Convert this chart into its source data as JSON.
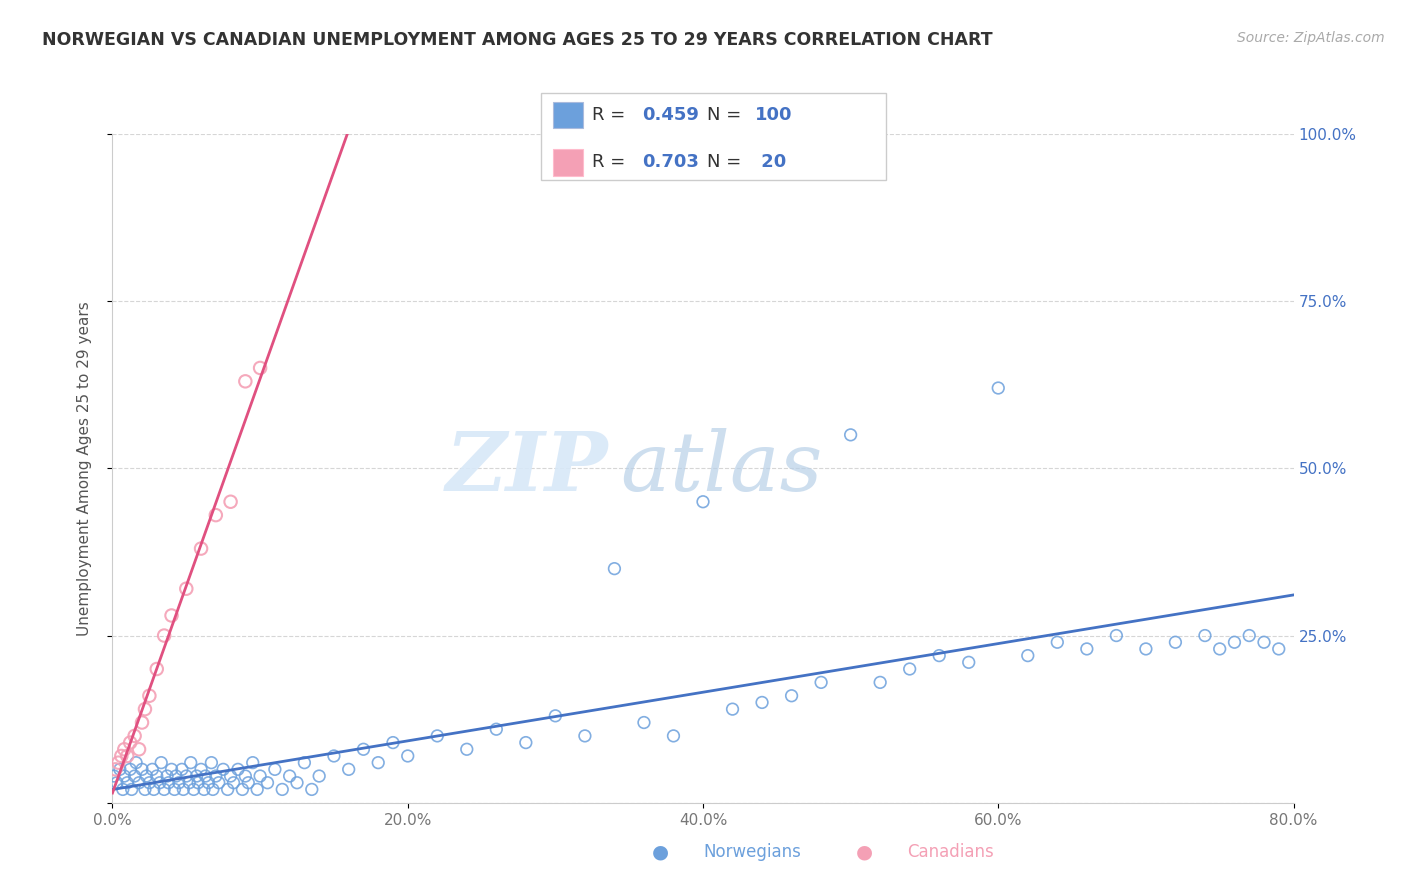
{
  "title": "NORWEGIAN VS CANADIAN UNEMPLOYMENT AMONG AGES 25 TO 29 YEARS CORRELATION CHART",
  "source_text": "Source: ZipAtlas.com",
  "ylabel": "Unemployment Among Ages 25 to 29 years",
  "xlim": [
    0.0,
    0.8
  ],
  "ylim": [
    0.0,
    1.0
  ],
  "xticks": [
    0.0,
    0.2,
    0.4,
    0.6,
    0.8
  ],
  "xticklabels": [
    "0.0%",
    "20.0%",
    "40.0%",
    "60.0%",
    "80.0%"
  ],
  "yticks": [
    0.0,
    0.25,
    0.5,
    0.75,
    1.0
  ],
  "yticklabels": [
    "",
    "25.0%",
    "50.0%",
    "75.0%",
    "100.0%"
  ],
  "norwegian_color": "#6ca0dc",
  "canadian_color": "#f4a0b5",
  "regression_norwegian_color": "#4472c4",
  "regression_canadian_color": "#e05080",
  "norwegian_R": 0.459,
  "norwegian_N": 100,
  "canadian_R": 0.703,
  "canadian_N": 20,
  "watermark_zip": "ZIP",
  "watermark_atlas": "atlas",
  "background_color": "#ffffff",
  "grid_color": "#cccccc",
  "norwegian_x": [
    0.001,
    0.003,
    0.005,
    0.007,
    0.008,
    0.01,
    0.012,
    0.013,
    0.015,
    0.016,
    0.018,
    0.02,
    0.022,
    0.023,
    0.025,
    0.027,
    0.028,
    0.03,
    0.032,
    0.033,
    0.035,
    0.037,
    0.038,
    0.04,
    0.042,
    0.043,
    0.045,
    0.047,
    0.048,
    0.05,
    0.052,
    0.053,
    0.055,
    0.057,
    0.058,
    0.06,
    0.062,
    0.063,
    0.065,
    0.067,
    0.068,
    0.07,
    0.072,
    0.075,
    0.078,
    0.08,
    0.082,
    0.085,
    0.088,
    0.09,
    0.092,
    0.095,
    0.098,
    0.1,
    0.105,
    0.11,
    0.115,
    0.12,
    0.125,
    0.13,
    0.135,
    0.14,
    0.15,
    0.16,
    0.17,
    0.18,
    0.19,
    0.2,
    0.22,
    0.24,
    0.26,
    0.28,
    0.3,
    0.32,
    0.34,
    0.36,
    0.38,
    0.4,
    0.42,
    0.44,
    0.46,
    0.48,
    0.5,
    0.52,
    0.54,
    0.56,
    0.58,
    0.6,
    0.62,
    0.64,
    0.66,
    0.68,
    0.7,
    0.72,
    0.74,
    0.75,
    0.76,
    0.77,
    0.78,
    0.79
  ],
  "norwegian_y": [
    0.04,
    0.03,
    0.05,
    0.02,
    0.04,
    0.03,
    0.05,
    0.02,
    0.04,
    0.06,
    0.03,
    0.05,
    0.02,
    0.04,
    0.03,
    0.05,
    0.02,
    0.04,
    0.03,
    0.06,
    0.02,
    0.04,
    0.03,
    0.05,
    0.02,
    0.04,
    0.03,
    0.05,
    0.02,
    0.04,
    0.03,
    0.06,
    0.02,
    0.04,
    0.03,
    0.05,
    0.02,
    0.04,
    0.03,
    0.06,
    0.02,
    0.04,
    0.03,
    0.05,
    0.02,
    0.04,
    0.03,
    0.05,
    0.02,
    0.04,
    0.03,
    0.06,
    0.02,
    0.04,
    0.03,
    0.05,
    0.02,
    0.04,
    0.03,
    0.06,
    0.02,
    0.04,
    0.07,
    0.05,
    0.08,
    0.06,
    0.09,
    0.07,
    0.1,
    0.08,
    0.11,
    0.09,
    0.13,
    0.1,
    0.35,
    0.12,
    0.1,
    0.45,
    0.14,
    0.15,
    0.16,
    0.18,
    0.55,
    0.18,
    0.2,
    0.22,
    0.21,
    0.62,
    0.22,
    0.24,
    0.23,
    0.25,
    0.23,
    0.24,
    0.25,
    0.23,
    0.24,
    0.25,
    0.24,
    0.23
  ],
  "canadian_x": [
    0.002,
    0.004,
    0.006,
    0.008,
    0.01,
    0.012,
    0.015,
    0.018,
    0.02,
    0.022,
    0.025,
    0.03,
    0.035,
    0.04,
    0.05,
    0.06,
    0.07,
    0.08,
    0.09,
    0.1
  ],
  "canadian_y": [
    0.05,
    0.06,
    0.07,
    0.08,
    0.07,
    0.09,
    0.1,
    0.08,
    0.12,
    0.14,
    0.16,
    0.2,
    0.25,
    0.28,
    0.32,
    0.38,
    0.43,
    0.45,
    0.63,
    0.65
  ]
}
